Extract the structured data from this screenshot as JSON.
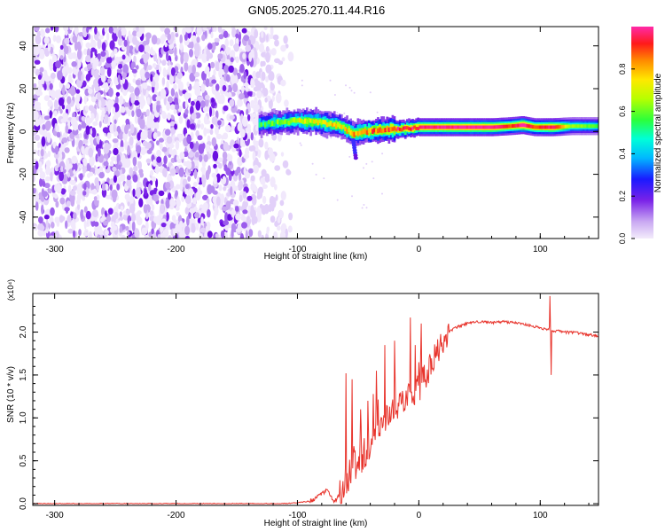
{
  "title": "GN05.2025.270.11.44.R16",
  "chart_data": [
    {
      "type": "heatmap",
      "name": "spectrogram",
      "xlabel": "Height of straight line (km)",
      "ylabel": "Frequency (Hz)",
      "xlim": [
        -318,
        148
      ],
      "ylim": [
        -50,
        49
      ],
      "xticks": [
        -300,
        -200,
        -100,
        0,
        100
      ],
      "yticks": [
        -40,
        -20,
        0,
        20,
        40
      ],
      "noise_region_x": [
        -318,
        -108
      ],
      "signal_band": {
        "x": [
          -132,
          -110,
          -100,
          -85,
          -75,
          -65,
          -55,
          -45,
          -35,
          -25,
          -15,
          0,
          20,
          40,
          60,
          75,
          85,
          95,
          110,
          125,
          148
        ],
        "center_hz": [
          3.5,
          4.5,
          5,
          4.5,
          3.5,
          2.5,
          -1,
          0,
          0.5,
          1,
          1,
          2,
          2,
          2,
          2,
          2.5,
          3,
          2,
          2,
          2.5,
          2.5
        ],
        "peak_amplitude": [
          0.5,
          0.6,
          0.65,
          0.7,
          0.7,
          0.7,
          0.75,
          0.8,
          0.85,
          0.85,
          0.9,
          0.95,
          0.95,
          0.97,
          0.97,
          0.85,
          1.0,
          0.85,
          0.95,
          0.6,
          0.55
        ]
      },
      "colorbar": {
        "label": "Normalized spectral amplitude",
        "range": [
          0,
          1
        ],
        "ticks": [
          "0.0",
          "0.2",
          "0.4",
          "0.6",
          "0.8"
        ]
      }
    },
    {
      "type": "line",
      "name": "snr",
      "xlabel": "Height of straight line (km)",
      "ylabel": "SNR (10 * v/v)",
      "scale_label": "(x10⁴)",
      "xlim": [
        -318,
        148
      ],
      "ylim": [
        -0.02,
        2.45
      ],
      "xticks": [
        -300,
        -200,
        -100,
        0,
        100
      ],
      "yticks": [
        "0.0",
        "0.5",
        "1.0",
        "1.5",
        "2.0"
      ],
      "ytick_values": [
        0,
        0.5,
        1.0,
        1.5,
        2.0
      ],
      "color": "#e8342c",
      "x": [
        -318,
        -200,
        -110,
        -100,
        -90,
        -85,
        -80,
        -75,
        -72,
        -70,
        -65,
        -60,
        -55,
        -50,
        -45,
        -40,
        -35,
        -30,
        -25,
        -20,
        -15,
        -10,
        -5,
        0,
        5,
        10,
        15,
        20,
        25,
        30,
        40,
        50,
        60,
        70,
        80,
        90,
        100,
        105,
        108,
        110,
        115,
        120,
        130,
        140,
        148
      ],
      "y": [
        0.0,
        0.0,
        0.0,
        0.01,
        0.03,
        0.06,
        0.12,
        0.16,
        0.07,
        0.02,
        0.1,
        0.3,
        0.4,
        0.5,
        0.58,
        0.68,
        0.8,
        0.9,
        1.0,
        1.1,
        1.2,
        1.26,
        1.3,
        1.35,
        1.5,
        1.62,
        1.75,
        1.9,
        2.0,
        2.05,
        2.1,
        2.12,
        2.11,
        2.12,
        2.11,
        2.08,
        2.05,
        2.03,
        2.05,
        2.0,
        2.02,
        2.0,
        1.99,
        1.97,
        1.95
      ],
      "spikes": [
        {
          "x": -60,
          "y": 1.52
        },
        {
          "x": -55,
          "y": 1.45
        },
        {
          "x": -48,
          "y": 1.1
        },
        {
          "x": -42,
          "y": 1.2
        },
        {
          "x": -35,
          "y": 1.55
        },
        {
          "x": -28,
          "y": 1.85
        },
        {
          "x": -20,
          "y": 1.9
        },
        {
          "x": -7,
          "y": 2.17
        },
        {
          "x": -3,
          "y": 1.85
        },
        {
          "x": 2,
          "y": 2.1
        },
        {
          "x": 108,
          "y": 2.42
        },
        {
          "x": 109,
          "y": 1.5
        }
      ]
    }
  ]
}
